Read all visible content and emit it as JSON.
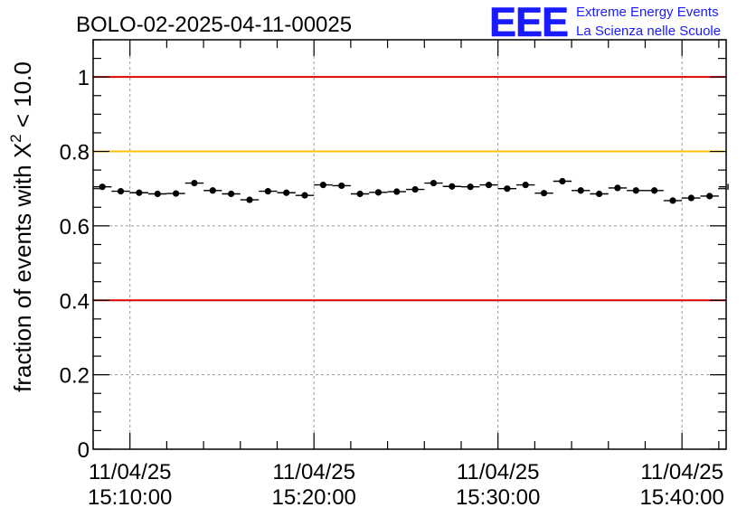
{
  "header": {
    "title": "BOLO-02-2025-04-11-00025",
    "logo_text": "EEE",
    "logo_line1": "Extreme Energy Events",
    "logo_line2": "La Scienza nelle Scuole"
  },
  "colors": {
    "threshold_red": "#e00000",
    "threshold_orange": "#ffc000",
    "logo_blue": "#1a1aff",
    "markers": "#000000"
  },
  "chart_data": {
    "type": "scatter",
    "title": "BOLO-02-2025-04-11-00025",
    "xlabel": "",
    "ylabel": "fraction of events with Χ² < 10.0",
    "ylabel_parts": {
      "pre": "fraction of events with Χ",
      "sup": "2",
      "post": " < 10.0"
    },
    "ylim": [
      0,
      1.1
    ],
    "yticks": [
      0,
      0.2,
      0.4,
      0.6,
      0.8,
      1
    ],
    "ytick_labels": [
      "0",
      "0.2",
      "0.4",
      "0.6",
      "0.8",
      "1"
    ],
    "xlim_minutes_from_15_00": [
      8.0,
      42.4
    ],
    "xtick_labels": [
      {
        "minute": 10,
        "date": "11/04/25",
        "time": "15:10:00"
      },
      {
        "minute": 20,
        "date": "11/04/25",
        "time": "15:20:00"
      },
      {
        "minute": 30,
        "date": "11/04/25",
        "time": "15:30:00"
      },
      {
        "minute": 40,
        "date": "11/04/25",
        "time": "15:40:00"
      }
    ],
    "grid": true,
    "thresholds": [
      {
        "value": 1.0,
        "color": "#e00000"
      },
      {
        "value": 0.8,
        "color": "#ffc000"
      },
      {
        "value": 0.4,
        "color": "#e00000"
      }
    ],
    "series": [
      {
        "bin_width_minutes": 1,
        "x": [
          8.5,
          9.5,
          10.5,
          11.5,
          12.5,
          13.5,
          14.5,
          15.5,
          16.5,
          17.5,
          18.5,
          19.5,
          20.5,
          21.5,
          22.5,
          23.5,
          24.5,
          25.5,
          26.5,
          27.5,
          28.5,
          29.5,
          30.5,
          31.5,
          32.5,
          33.5,
          34.5,
          35.5,
          36.5,
          37.5,
          38.5,
          39.5,
          40.5,
          41.5,
          42.5
        ],
        "y": [
          0.705,
          0.693,
          0.689,
          0.686,
          0.687,
          0.715,
          0.695,
          0.686,
          0.67,
          0.693,
          0.689,
          0.682,
          0.71,
          0.708,
          0.686,
          0.69,
          0.692,
          0.698,
          0.715,
          0.706,
          0.705,
          0.71,
          0.7,
          0.71,
          0.688,
          0.72,
          0.695,
          0.686,
          0.702,
          0.695,
          0.695,
          0.668,
          0.675,
          0.68,
          0.705
        ],
        "yerr": 0.008
      }
    ]
  }
}
